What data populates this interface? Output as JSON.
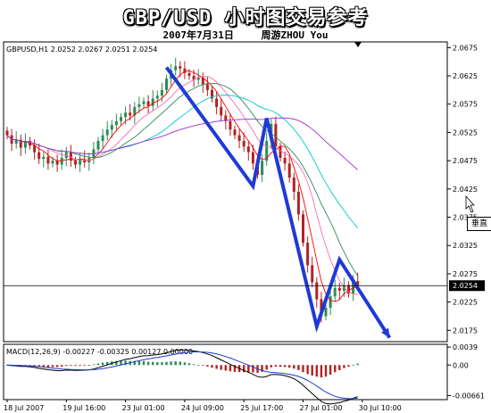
{
  "page_title": "GBP/USD 小时图交易参考",
  "subtitle": {
    "date": "2007年7月31日",
    "author": "周游ZHOU You"
  },
  "chart_data": {
    "type": "candlestick",
    "symbol_info": "GBPUSD,H1  2.0252 2.0267 2.0251 2.0254",
    "ylim": [
      2.0155,
      2.0685
    ],
    "y_ticks": [
      2.0675,
      2.0625,
      2.0575,
      2.0525,
      2.0475,
      2.0425,
      2.0375,
      2.0325,
      2.0275,
      2.0225,
      2.0175
    ],
    "y_tick_labels": [
      "2.0675",
      "2.0625",
      "2.0575",
      "2.0525",
      "2.0475",
      "2.0425",
      "2.0375",
      "2.0325",
      "2.0275",
      "2.0225",
      "2.0175"
    ],
    "current_price": 2.0254,
    "current_price_label": "2.0254",
    "x_labels": [
      "18 Jul 2007",
      "19 Jul 16:00",
      "23 Jul 01:00",
      "24 Jul 09:00",
      "25 Jul 17:00",
      "27 Jul 01:00",
      "30 Jul 10:00"
    ],
    "x_label_index": [
      0,
      13,
      26,
      39,
      52,
      65,
      78
    ],
    "closes": [
      2.052,
      2.0505,
      2.0512,
      2.0498,
      2.051,
      2.0502,
      2.049,
      2.0478,
      2.0482,
      2.047,
      2.0475,
      2.0468,
      2.048,
      2.049,
      2.0475,
      2.0468,
      2.0478,
      2.0472,
      2.048,
      2.0495,
      2.051,
      2.052,
      2.053,
      2.0538,
      2.0545,
      2.0552,
      2.056,
      2.0555,
      2.057,
      2.0575,
      2.058,
      2.0572,
      2.0585,
      2.059,
      2.06,
      2.062,
      2.0635,
      2.0642,
      2.0638,
      2.063,
      2.0625,
      2.0618,
      2.0622,
      2.061,
      2.06,
      2.0585,
      2.057,
      2.0555,
      2.0545,
      2.053,
      2.052,
      2.051,
      2.05,
      2.049,
      2.047,
      2.045,
      2.0475,
      2.051,
      2.054,
      2.05,
      2.048,
      2.047,
      2.0445,
      2.042,
      2.038,
      2.033,
      2.029,
      2.026,
      2.023,
      2.02,
      2.0215,
      2.0235,
      2.025,
      2.0245,
      2.0255,
      2.024,
      2.0262,
      2.0254
    ],
    "overlay_ma": [
      {
        "color": "#ff0000",
        "period": 5
      },
      {
        "color": "#ff69b4",
        "period": 10
      },
      {
        "color": "#2e8b57",
        "period": 15
      },
      {
        "color": "#00c8c8",
        "period": 25
      },
      {
        "color": "#9932cc",
        "period": 45
      }
    ],
    "trend_line": {
      "color": "#1f3ad6",
      "points": [
        {
          "x_index": 35,
          "price": 2.064
        },
        {
          "x_index": 54,
          "price": 2.043
        },
        {
          "x_index": 57,
          "price": 2.055
        },
        {
          "x_index": 68,
          "price": 2.0182
        },
        {
          "x_index": 73,
          "price": 2.03
        },
        {
          "x_index": 84,
          "price": 2.0162
        }
      ]
    },
    "macd": {
      "label": "MACD(12,26,9) -0.00227 -0.00325 0.00127 0.00000",
      "ylim": [
        -0.0075,
        0.0045
      ],
      "y_ticks": [
        0.0039,
        0.0,
        -0.00661
      ],
      "y_tick_labels": [
        "0.0039",
        "0.00",
        "-0.00661"
      ]
    },
    "cursor_tag": "垂直",
    "grid": false
  }
}
